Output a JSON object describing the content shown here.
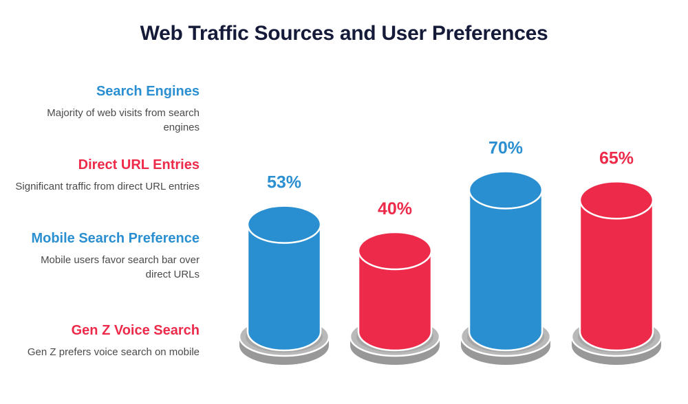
{
  "title": "Web Traffic Sources and User Preferences",
  "colors": {
    "blue": "#2a8fd1",
    "red": "#ee2a4a",
    "base": "#b9b9b9",
    "title": "#141a38"
  },
  "legend": [
    {
      "title": "Search Engines",
      "desc": "Majority of web visits from search engines",
      "color": "#2a8fd1"
    },
    {
      "title": "Direct URL Entries",
      "desc": "Significant traffic from direct URL entries",
      "color": "#ee2a4a"
    },
    {
      "title": "Mobile Search Preference",
      "desc": "Mobile users favor search bar over direct URLs",
      "color": "#2a8fd1"
    },
    {
      "title": "Gen Z Voice Search",
      "desc": "Gen Z prefers voice search on mobile",
      "color": "#ee2a4a"
    }
  ],
  "chart_data": {
    "type": "bar",
    "title": "Web Traffic Sources and User Preferences",
    "categories": [
      "Search Engines",
      "Direct URL Entries",
      "Mobile Search Preference",
      "Gen Z Voice Search"
    ],
    "values": [
      53,
      40,
      70,
      65
    ],
    "labels": [
      "53%",
      "40%",
      "70%",
      "65%"
    ],
    "colors": [
      "#2a8fd1",
      "#ee2a4a",
      "#2a8fd1",
      "#ee2a4a"
    ],
    "ylim": [
      0,
      100
    ],
    "grid": false
  }
}
